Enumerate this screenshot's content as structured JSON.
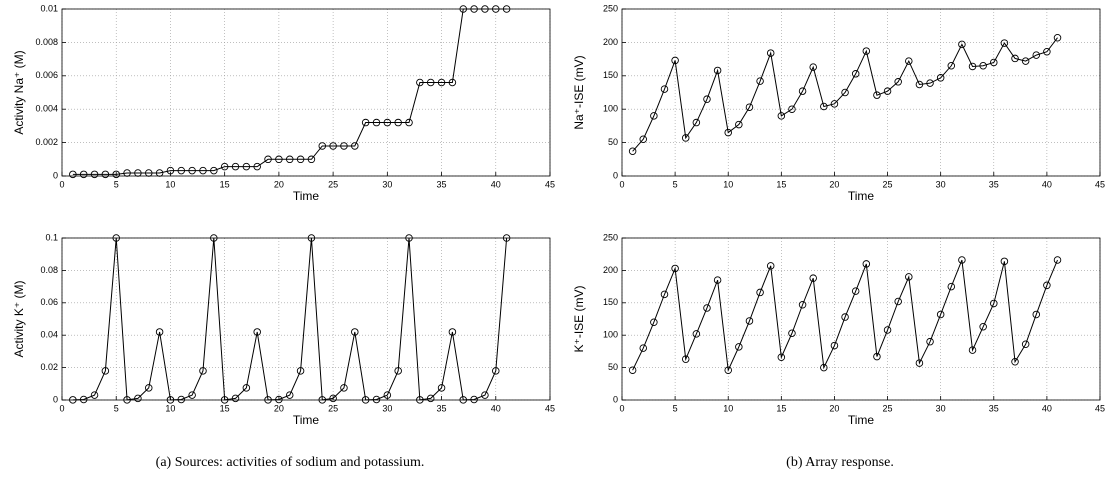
{
  "chart_data": [
    {
      "type": "line",
      "ylabel": "Activity Na⁺ (M)",
      "xlabel": "Time",
      "x": [
        1,
        2,
        3,
        4,
        5,
        6,
        7,
        8,
        9,
        10,
        11,
        12,
        13,
        14,
        15,
        16,
        17,
        18,
        19,
        20,
        21,
        22,
        23,
        24,
        25,
        26,
        27,
        28,
        29,
        30,
        31,
        32,
        33,
        34,
        35,
        36,
        37,
        38,
        39,
        40,
        41
      ],
      "series": [
        {
          "color": "#000000",
          "values": [
            0.0001,
            0.0001,
            0.0001,
            0.0001,
            0.0001,
            0.00018,
            0.00018,
            0.00018,
            0.00018,
            0.00032,
            0.00032,
            0.00032,
            0.00032,
            0.00032,
            0.00056,
            0.00056,
            0.00056,
            0.00056,
            0.001,
            0.001,
            0.001,
            0.001,
            0.001,
            0.0018,
            0.0018,
            0.0018,
            0.0018,
            0.0032,
            0.0032,
            0.0032,
            0.0032,
            0.0032,
            0.0056,
            0.0056,
            0.0056,
            0.0056,
            0.01,
            0.01,
            0.01,
            0.01,
            0.01
          ]
        }
      ],
      "xlim": [
        0,
        45
      ],
      "xticks": [
        0,
        5,
        10,
        15,
        20,
        25,
        30,
        35,
        40,
        45
      ],
      "ylim": [
        0,
        0.01
      ],
      "yticks": [
        0,
        0.002,
        0.004,
        0.006,
        0.008,
        0.01
      ],
      "grid": true
    },
    {
      "type": "line",
      "ylabel": "Na⁺-ISE (mV)",
      "xlabel": "Time",
      "x": [
        1,
        2,
        3,
        4,
        5,
        6,
        7,
        8,
        9,
        10,
        11,
        12,
        13,
        14,
        15,
        16,
        17,
        18,
        19,
        20,
        21,
        22,
        23,
        24,
        25,
        26,
        27,
        28,
        29,
        30,
        31,
        32,
        33,
        34,
        35,
        36,
        37,
        38,
        39,
        40,
        41
      ],
      "series": [
        {
          "color": "#000000",
          "values": [
            37,
            55,
            90,
            130,
            173,
            57,
            80,
            115,
            158,
            65,
            77,
            103,
            142,
            184,
            90,
            100,
            127,
            163,
            104,
            108,
            125,
            153,
            187,
            121,
            127,
            141,
            172,
            137,
            139,
            147,
            165,
            197,
            164,
            165,
            170,
            199,
            176,
            172,
            181,
            186,
            207
          ]
        }
      ],
      "xlim": [
        0,
        45
      ],
      "xticks": [
        0,
        5,
        10,
        15,
        20,
        25,
        30,
        35,
        40,
        45
      ],
      "ylim": [
        0,
        250
      ],
      "yticks": [
        0,
        50,
        100,
        150,
        200,
        250
      ],
      "grid": true
    },
    {
      "type": "line",
      "ylabel": "Activity K⁺ (M)",
      "xlabel": "Time",
      "x": [
        1,
        2,
        3,
        4,
        5,
        6,
        7,
        8,
        9,
        10,
        11,
        12,
        13,
        14,
        15,
        16,
        17,
        18,
        19,
        20,
        21,
        22,
        23,
        24,
        25,
        26,
        27,
        28,
        29,
        30,
        31,
        32,
        33,
        34,
        35,
        36,
        37,
        38,
        39,
        40,
        41
      ],
      "series": [
        {
          "color": "#000000",
          "values": [
            0.0001,
            0.0003,
            0.003,
            0.018,
            0.1,
            0.0001,
            0.001,
            0.0075,
            0.042,
            0.0001,
            0.0003,
            0.003,
            0.018,
            0.1,
            0.0001,
            0.001,
            0.0075,
            0.042,
            0.0001,
            0.0003,
            0.003,
            0.018,
            0.1,
            0.0001,
            0.001,
            0.0075,
            0.042,
            0.0001,
            0.0003,
            0.003,
            0.018,
            0.1,
            0.0001,
            0.001,
            0.0075,
            0.042,
            0.0001,
            0.0003,
            0.003,
            0.018,
            0.1
          ]
        }
      ],
      "xlim": [
        0,
        45
      ],
      "xticks": [
        0,
        5,
        10,
        15,
        20,
        25,
        30,
        35,
        40,
        45
      ],
      "ylim": [
        0,
        0.1
      ],
      "yticks": [
        0,
        0.02,
        0.04,
        0.06,
        0.08,
        0.1
      ],
      "grid": true
    },
    {
      "type": "line",
      "ylabel": "K⁺-ISE (mV)",
      "xlabel": "Time",
      "x": [
        1,
        2,
        3,
        4,
        5,
        6,
        7,
        8,
        9,
        10,
        11,
        12,
        13,
        14,
        15,
        16,
        17,
        18,
        19,
        20,
        21,
        22,
        23,
        24,
        25,
        26,
        27,
        28,
        29,
        30,
        31,
        32,
        33,
        34,
        35,
        36,
        37,
        38,
        39,
        40,
        41
      ],
      "series": [
        {
          "color": "#000000",
          "values": [
            46,
            80,
            120,
            163,
            203,
            63,
            102,
            142,
            185,
            46,
            82,
            122,
            166,
            207,
            66,
            103,
            147,
            188,
            50,
            84,
            128,
            168,
            210,
            67,
            108,
            152,
            190,
            57,
            90,
            132,
            175,
            216,
            77,
            113,
            149,
            214,
            59,
            86,
            132,
            177,
            216
          ]
        }
      ],
      "xlim": [
        0,
        45
      ],
      "xticks": [
        0,
        5,
        10,
        15,
        20,
        25,
        30,
        35,
        40,
        45
      ],
      "ylim": [
        0,
        250
      ],
      "yticks": [
        0,
        50,
        100,
        150,
        200,
        250
      ],
      "grid": true
    }
  ],
  "captions": [
    "(a) Sources: activities of sodium and potassium.",
    "(b) Array response."
  ]
}
